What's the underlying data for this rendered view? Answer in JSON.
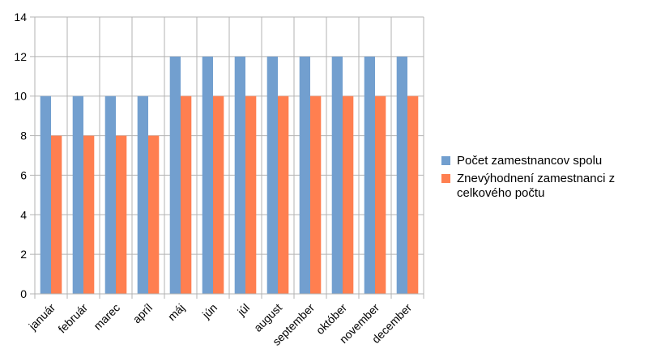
{
  "chart_data": {
    "type": "bar",
    "categories": [
      "január",
      "február",
      "marec",
      "apríl",
      "máj",
      "jún",
      "júl",
      "august",
      "september",
      "október",
      "november",
      "december"
    ],
    "series": [
      {
        "name": "Počet zamestnancov spolu",
        "color": "#729fcf",
        "values": [
          10,
          10,
          10,
          10,
          12,
          12,
          12,
          12,
          12,
          12,
          12,
          12
        ]
      },
      {
        "name": "Znevýhodnení zamestnanci z celkového počtu",
        "color": "#ff7f50",
        "values": [
          8,
          8,
          8,
          8,
          10,
          10,
          10,
          10,
          10,
          10,
          10,
          10
        ]
      }
    ],
    "ylim": [
      0,
      14
    ],
    "yticks": [
      "0",
      "2",
      "4",
      "6",
      "8",
      "10",
      "12",
      "14"
    ],
    "grid": true,
    "legend_position": "right",
    "legend_lines": [
      [
        "Počet zamestnancov spolu"
      ],
      [
        "Znevýhodnení zamestnanci z",
        "celkového počtu"
      ]
    ]
  }
}
